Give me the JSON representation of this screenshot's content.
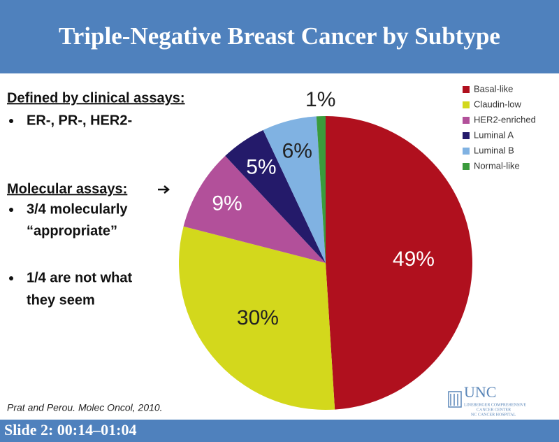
{
  "header": {
    "title": "Triple-Negative Breast Cancer by Subtype"
  },
  "notes": {
    "heading1": "Defined by clinical assays:",
    "bullets1": [
      [
        "ER-, PR-, HER2-"
      ]
    ],
    "heading2": "Molecular assays:",
    "bullets2": [
      [
        "3/4 molecularly",
        "“appropriate”"
      ],
      [
        "1/4 are not what",
        "they seem"
      ]
    ]
  },
  "citation": "Prat and Perou. Molec Oncol, 2010.",
  "logo": {
    "name": "UNC",
    "lines": [
      "LINEBERGER COMPREHENSIVE",
      "CANCER CENTER",
      "NC CANCER HOSPITAL"
    ]
  },
  "footer": "Slide 2: 00:14–01:04",
  "chart_data": {
    "type": "pie",
    "categories": [
      "Basal-like",
      "Claudin-low",
      "HER2-enriched",
      "Luminal A",
      "Luminal B",
      "Normal-like"
    ],
    "values": [
      49,
      30,
      9,
      5,
      6,
      1
    ],
    "value_labels": [
      "49%",
      "30%",
      "9%",
      "5%",
      "6%",
      "1%"
    ],
    "colors": [
      "#b0101e",
      "#d3d81c",
      "#b2509a",
      "#241a6a",
      "#80b2e2",
      "#3a9b3c"
    ],
    "legend": "top-right"
  }
}
